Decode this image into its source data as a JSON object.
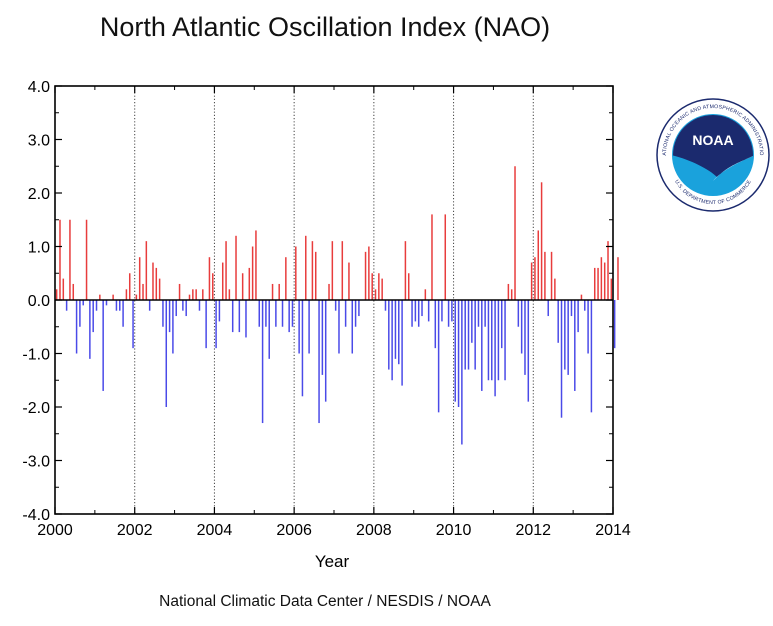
{
  "chart_data": {
    "type": "bar",
    "title": "North Atlantic Oscillation Index (NAO)",
    "xlabel": "Year",
    "ylabel": "",
    "credit": "National Climatic Data Center / NESDIS / NOAA",
    "xlim": [
      2000,
      2014
    ],
    "ylim": [
      -4.0,
      4.0
    ],
    "xticks": [
      "2000",
      "2002",
      "2004",
      "2006",
      "2008",
      "2010",
      "2012",
      "2014"
    ],
    "yticks": [
      "4.0",
      "3.0",
      "2.0",
      "1.0",
      "0.0",
      "-1.0",
      "-2.0",
      "-3.0",
      "-4.0"
    ],
    "grid": "vertical-dotted",
    "positive_color": "#e83c3c",
    "negative_color": "#4a4ae8",
    "start": "2000-01",
    "values": [
      0.2,
      1.5,
      0.4,
      -0.2,
      1.5,
      0.3,
      -1.0,
      -0.5,
      -0.1,
      1.5,
      -1.1,
      -0.6,
      -0.2,
      0.1,
      -1.7,
      -0.1,
      0.0,
      0.1,
      -0.2,
      -0.2,
      -0.5,
      0.2,
      0.5,
      -0.9,
      0.1,
      0.8,
      0.3,
      1.1,
      -0.2,
      0.7,
      0.6,
      0.4,
      -0.5,
      -2.0,
      -0.6,
      -1.0,
      -0.3,
      0.3,
      -0.2,
      -0.3,
      0.1,
      0.2,
      0.2,
      -0.2,
      0.2,
      -0.9,
      0.8,
      0.5,
      -0.9,
      -0.4,
      0.7,
      1.1,
      0.2,
      -0.6,
      1.2,
      -0.6,
      0.5,
      -0.7,
      0.6,
      1.0,
      1.3,
      -0.5,
      -2.3,
      -0.5,
      -1.1,
      0.3,
      -0.5,
      0.3,
      -0.5,
      0.8,
      -0.6,
      -0.5,
      1.0,
      -1.0,
      -1.8,
      1.2,
      -1.0,
      1.1,
      0.9,
      -2.3,
      -1.4,
      -1.9,
      0.3,
      1.1,
      -0.2,
      -1.0,
      1.1,
      -0.5,
      0.7,
      -1.0,
      -0.5,
      -0.3,
      0.0,
      0.9,
      1.0,
      0.5,
      0.2,
      0.5,
      0.4,
      -0.2,
      -1.3,
      -1.5,
      -1.1,
      -1.2,
      -1.6,
      1.1,
      0.5,
      -0.5,
      -0.4,
      -0.5,
      -0.3,
      0.2,
      -0.4,
      1.6,
      -0.9,
      -2.1,
      -0.4,
      1.6,
      -0.5,
      -0.4,
      -1.9,
      -2.0,
      -2.7,
      -1.3,
      -1.3,
      -0.8,
      -1.3,
      -0.5,
      -1.7,
      -0.5,
      -1.5,
      -1.5,
      -1.8,
      -1.5,
      -0.9,
      -1.5,
      0.3,
      0.2,
      2.5,
      -0.5,
      -1.0,
      -1.4,
      -1.9,
      0.7,
      0.8,
      1.3,
      2.2,
      0.9,
      -0.3,
      0.9,
      0.4,
      -0.8,
      -2.2,
      -1.3,
      -1.4,
      -0.3,
      -1.7,
      -0.6,
      0.1,
      -0.2,
      -1.0,
      -2.1,
      0.6,
      0.6,
      0.8,
      0.7,
      1.1,
      0.4,
      -0.9,
      0.8
    ]
  },
  "logo": {
    "text": "NOAA",
    "ring_top": "NATIONAL OCEANIC AND ATMOSPHERIC ADMINISTRATION",
    "ring_bottom": "U.S. DEPARTMENT OF COMMERCE",
    "navy": "#1b2a6e",
    "sky": "#1aa2dc"
  }
}
